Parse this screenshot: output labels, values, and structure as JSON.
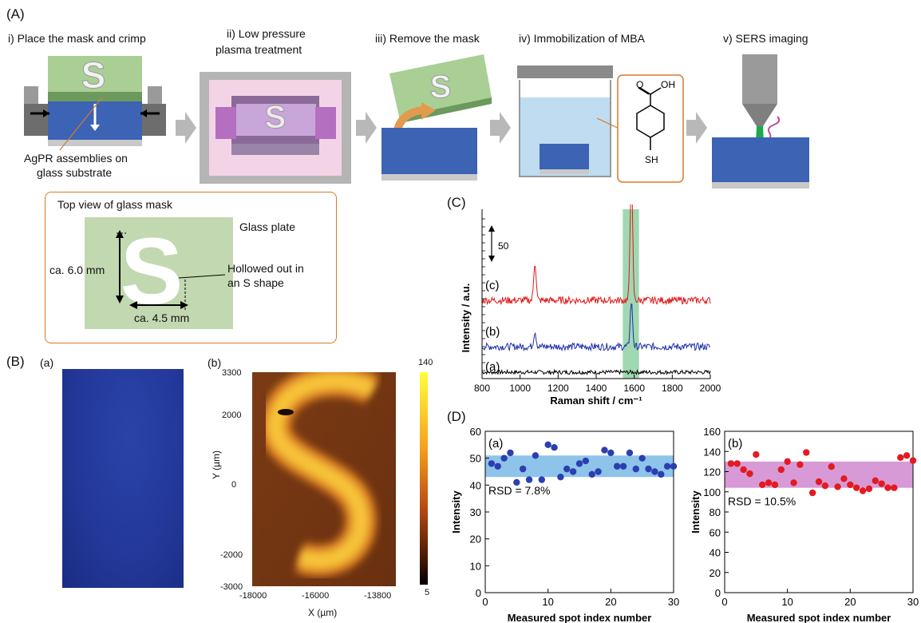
{
  "panel_a": {
    "letter": "(A)",
    "steps": [
      {
        "label": "i) Place the mask and crimp"
      },
      {
        "label_line1": "ii) Low pressure",
        "label_line2": "plasma treatment"
      },
      {
        "label": "iii) Remove the mask"
      },
      {
        "label": "iv) Immobilization of MBA"
      },
      {
        "label": "v) SERS imaging"
      }
    ],
    "substrate_label_line1": "AgPR assemblies on",
    "substrate_label_line2": "glass substrate",
    "mask_letter": "S",
    "molecule": {
      "oh": "OH",
      "o": "O",
      "sh": "SH"
    },
    "inset": {
      "title": "Top view of glass mask",
      "glass_plate": "Glass plate",
      "hollow_line1": "Hollowed out in",
      "hollow_line2": "an S shape",
      "height": "ca. 6.0 mm",
      "width": "ca. 4.5 mm"
    },
    "colors": {
      "mask": "#a9cf95",
      "substrate": "#3c63b4",
      "glass": "#c9c9c9",
      "arrow": "#b8b8b8",
      "inset_border": "#d77a2e",
      "solution": "#bfdcf0",
      "plasma": "#f3d3e6"
    }
  },
  "panel_b": {
    "letter": "(B)",
    "sub_a": "(a)",
    "sub_b": "(b)",
    "colorbar": {
      "max": "140",
      "min": "5"
    },
    "y_ticks": [
      "3300",
      "2000",
      "0",
      "-2000",
      "-3000"
    ],
    "x_ticks": [
      "-18000",
      "-16000",
      "-13800"
    ],
    "xlabel": "X (µm)",
    "ylabel": "Y (µm)"
  },
  "panel_c": {
    "letter": "(C)",
    "chart_data": {
      "type": "line",
      "xlabel": "Raman shift / cm⁻¹",
      "ylabel": "Intensity / a.u.",
      "xlim": [
        800,
        2000
      ],
      "x_ticks": [
        "800",
        "1000",
        "1200",
        "1400",
        "1600",
        "1800",
        "2000"
      ],
      "scale_bar": "50",
      "highlight_band": [
        1540,
        1625
      ],
      "series": [
        {
          "name": "(a)",
          "color": "#000000",
          "peaks": [],
          "baseline": 0
        },
        {
          "name": "(b)",
          "color": "#1f2fa8",
          "peaks": [
            [
              1078,
              12
            ],
            [
              1585,
              35
            ]
          ],
          "baseline": 15
        },
        {
          "name": "(c)",
          "color": "#e01818",
          "peaks": [
            [
              1078,
              30
            ],
            [
              1585,
              100
            ]
          ],
          "baseline": 45
        }
      ]
    }
  },
  "panel_d": {
    "letter": "(D)",
    "charts": [
      {
        "sub": "(a)",
        "rsd": "RSD = 7.8%",
        "type": "scatter",
        "ylabel": "Intensity",
        "xlabel": "Measured spot index number",
        "ylim": [
          0,
          60
        ],
        "y_ticks": [
          "0",
          "10",
          "20",
          "30",
          "40",
          "50",
          "60"
        ],
        "x_ticks": [
          "0",
          "10",
          "20",
          "30"
        ],
        "band": [
          43,
          51
        ],
        "color": "#2b3fb0",
        "band_color": "#8ec3ea",
        "x": [
          1,
          2,
          3,
          4,
          5,
          6,
          7,
          8,
          9,
          10,
          11,
          12,
          13,
          14,
          15,
          16,
          17,
          18,
          19,
          20,
          21,
          22,
          23,
          24,
          25,
          26,
          27,
          28,
          29,
          30
        ],
        "y": [
          48,
          47,
          50,
          52,
          41,
          46,
          42,
          51,
          42,
          55,
          54,
          43,
          46,
          45,
          48,
          49,
          44,
          45,
          53,
          52,
          47,
          47,
          52,
          46,
          50,
          46,
          45,
          44,
          47,
          47
        ]
      },
      {
        "sub": "(b)",
        "rsd": "RSD = 10.5%",
        "type": "scatter",
        "ylabel": "Intensity",
        "xlabel": "Measured spot index number",
        "ylim": [
          0,
          160
        ],
        "y_ticks": [
          "0",
          "20",
          "40",
          "60",
          "80",
          "100",
          "120",
          "140",
          "160"
        ],
        "x_ticks": [
          "0",
          "10",
          "20",
          "30"
        ],
        "band": [
          104,
          130
        ],
        "color": "#e31a22",
        "band_color": "#d79ad6",
        "x": [
          1,
          2,
          3,
          4,
          5,
          6,
          7,
          8,
          9,
          10,
          11,
          12,
          13,
          14,
          15,
          16,
          17,
          18,
          19,
          20,
          21,
          22,
          23,
          24,
          25,
          26,
          27,
          28,
          29,
          30
        ],
        "y": [
          128,
          128,
          122,
          118,
          137,
          107,
          109,
          107,
          122,
          130,
          109,
          127,
          139,
          99,
          110,
          106,
          125,
          105,
          113,
          107,
          104,
          101,
          103,
          111,
          108,
          104,
          104,
          134,
          136,
          131
        ]
      }
    ]
  }
}
